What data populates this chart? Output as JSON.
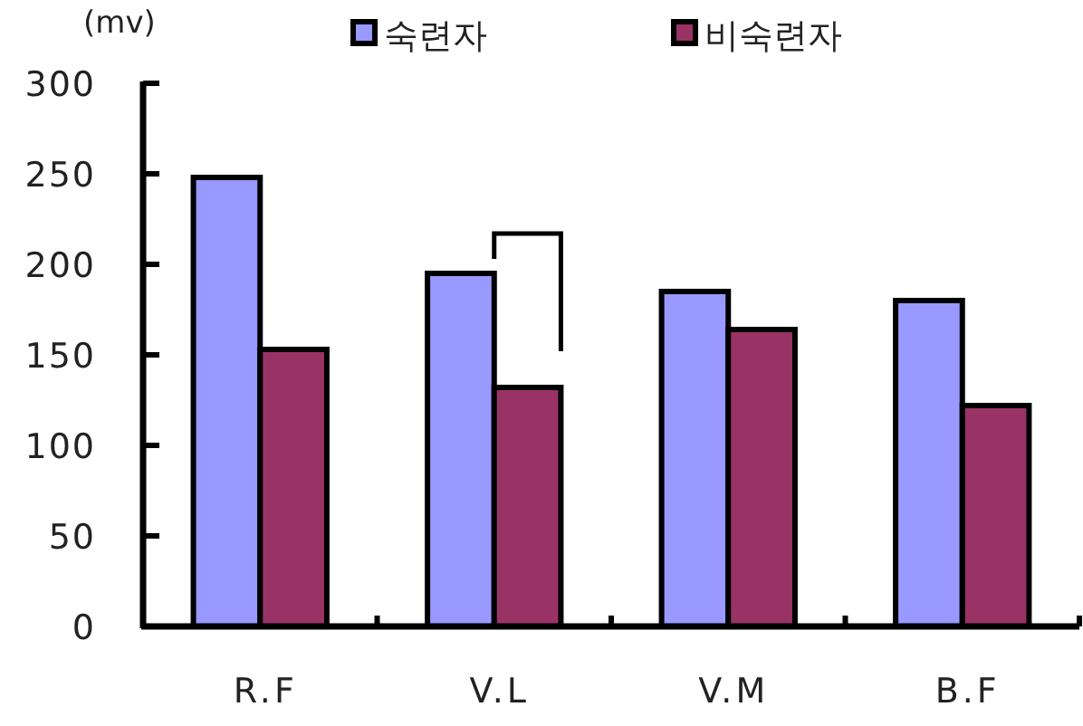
{
  "chart_data": {
    "type": "bar",
    "ylabel": "(mv)",
    "categories": [
      "R.F",
      "V.L",
      "V.M",
      "B.F"
    ],
    "series": [
      {
        "name": "숙련자",
        "color": "#9999ff",
        "values": [
          248,
          195,
          185,
          180
        ]
      },
      {
        "name": "비숙련자",
        "color": "#993366",
        "values": [
          153,
          132,
          164,
          122
        ]
      }
    ],
    "ylim": [
      0,
      300
    ],
    "yticks": [
      0,
      50,
      100,
      150,
      200,
      250,
      300
    ],
    "grid": false,
    "legend": "top"
  }
}
